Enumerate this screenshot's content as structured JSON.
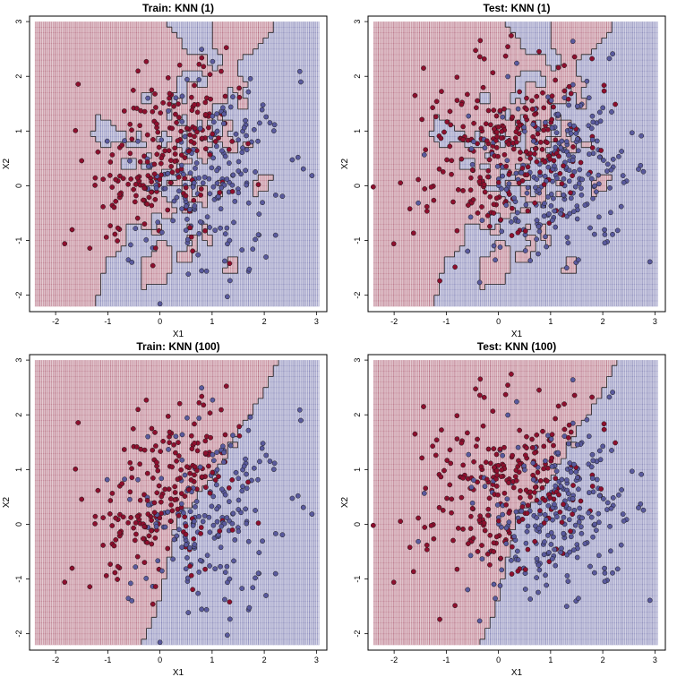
{
  "palette": {
    "class_a": "#8b1a3a",
    "class_b": "#3c3c8c",
    "point_a": "#8e0f2e",
    "point_b": "#5a5a9e",
    "boundary": "#222222"
  },
  "chart_data": [
    {
      "type": "scatter",
      "title": "Train: KNN (1)",
      "xlabel": "X1",
      "ylabel": "X2",
      "xlim": [
        -2.5,
        3.2
      ],
      "ylim": [
        -2.3,
        3.1
      ],
      "xticks": [
        "-2",
        "-1",
        "0",
        "1",
        "2",
        "3"
      ],
      "yticks": [
        "-2",
        "-1",
        "0",
        "1",
        "2",
        "3"
      ],
      "series": [
        {
          "n": 400,
          "seed": 11
        }
      ],
      "k": 1
    },
    {
      "type": "scatter",
      "title": "Test: KNN (1)",
      "xlabel": "X1",
      "ylabel": "X2",
      "xlim": [
        -2.5,
        3.2
      ],
      "ylim": [
        -2.3,
        3.1
      ],
      "xticks": [
        "-2",
        "-1",
        "0",
        "1",
        "2",
        "3"
      ],
      "yticks": [
        "-2",
        "-1",
        "0",
        "1",
        "2",
        "3"
      ],
      "series": [
        {
          "n": 500,
          "seed": 23
        }
      ],
      "k": 1
    },
    {
      "type": "scatter",
      "title": "Train: KNN (100)",
      "xlabel": "X1",
      "ylabel": "X2",
      "xlim": [
        -2.5,
        3.2
      ],
      "ylim": [
        -2.3,
        3.1
      ],
      "xticks": [
        "-2",
        "-1",
        "0",
        "1",
        "2",
        "3"
      ],
      "yticks": [
        "-2",
        "-1",
        "0",
        "1",
        "2",
        "3"
      ],
      "series": [
        {
          "n": 400,
          "seed": 11
        }
      ],
      "k": 100
    },
    {
      "type": "scatter",
      "title": "Test: KNN (100)",
      "xlabel": "X1",
      "ylabel": "X2",
      "xlim": [
        -2.5,
        3.2
      ],
      "ylim": [
        -2.3,
        3.1
      ],
      "xticks": [
        "-2",
        "-1",
        "0",
        "1",
        "2",
        "3"
      ],
      "yticks": [
        "-2",
        "-1",
        "0",
        "1",
        "2",
        "3"
      ],
      "series": [
        {
          "n": 500,
          "seed": 23
        }
      ],
      "k": 100
    }
  ]
}
